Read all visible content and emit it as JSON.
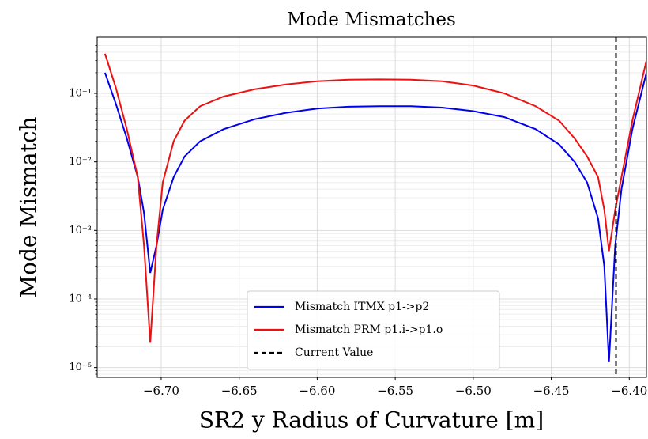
{
  "chart_data": {
    "type": "line",
    "title": "Mode Mismatches",
    "xlabel": "SR2 y Radius of Curvature [m]",
    "ylabel": "Mode Mismatch",
    "x": [
      -6.736,
      -6.729,
      -6.722,
      -6.715,
      -6.711,
      -6.707,
      -6.703,
      -6.699,
      -6.692,
      -6.685,
      -6.675,
      -6.66,
      -6.64,
      -6.62,
      -6.6,
      -6.58,
      -6.56,
      -6.54,
      -6.52,
      -6.5,
      -6.48,
      -6.46,
      -6.445,
      -6.435,
      -6.427,
      -6.42,
      -6.416,
      -6.413,
      -6.409,
      -6.405,
      -6.398,
      -6.389
    ],
    "series": [
      {
        "name": "Mismatch ITMX p1->p2",
        "color": "#0000ee",
        "values": [
          0.2,
          0.07,
          0.022,
          0.006,
          0.0018,
          0.00024,
          0.0006,
          0.002,
          0.006,
          0.012,
          0.02,
          0.03,
          0.042,
          0.052,
          0.06,
          0.064,
          0.065,
          0.065,
          0.062,
          0.055,
          0.045,
          0.03,
          0.018,
          0.01,
          0.005,
          0.0015,
          0.0003,
          1.2e-05,
          0.0006,
          0.004,
          0.03,
          0.2
        ]
      },
      {
        "name": "Mismatch PRM p1.i->p1.o",
        "color": "#ee1111",
        "values": [
          0.38,
          0.12,
          0.03,
          0.006,
          0.0006,
          2.3e-05,
          0.0006,
          0.005,
          0.02,
          0.04,
          0.065,
          0.09,
          0.115,
          0.135,
          0.15,
          0.158,
          0.16,
          0.158,
          0.15,
          0.13,
          0.1,
          0.065,
          0.04,
          0.022,
          0.012,
          0.006,
          0.002,
          0.0005,
          0.002,
          0.006,
          0.04,
          0.3
        ]
      }
    ],
    "vline": {
      "name": "Current Value",
      "x": -6.4085,
      "color": "#000000"
    },
    "xlim": [
      -6.741,
      -6.389
    ],
    "xticks": [
      {
        "value": -6.7,
        "label": "−6.70"
      },
      {
        "value": -6.65,
        "label": "−6.65"
      },
      {
        "value": -6.6,
        "label": "−6.60"
      },
      {
        "value": -6.55,
        "label": "−6.55"
      },
      {
        "value": -6.5,
        "label": "−6.50"
      },
      {
        "value": -6.45,
        "label": "−6.45"
      },
      {
        "value": -6.4,
        "label": "−6.40"
      }
    ],
    "ylim": [
      7.2e-06,
      0.66
    ],
    "ylog": true,
    "yticks": [
      {
        "value": 1e-05,
        "label": "10⁻⁵"
      },
      {
        "value": 0.0001,
        "label": "10⁻⁴"
      },
      {
        "value": 0.001,
        "label": "10⁻³"
      },
      {
        "value": 0.01,
        "label": "10⁻²"
      },
      {
        "value": 0.1,
        "label": "10⁻¹"
      }
    ],
    "grid": true,
    "minor_grid": true,
    "legend": "lower center"
  }
}
